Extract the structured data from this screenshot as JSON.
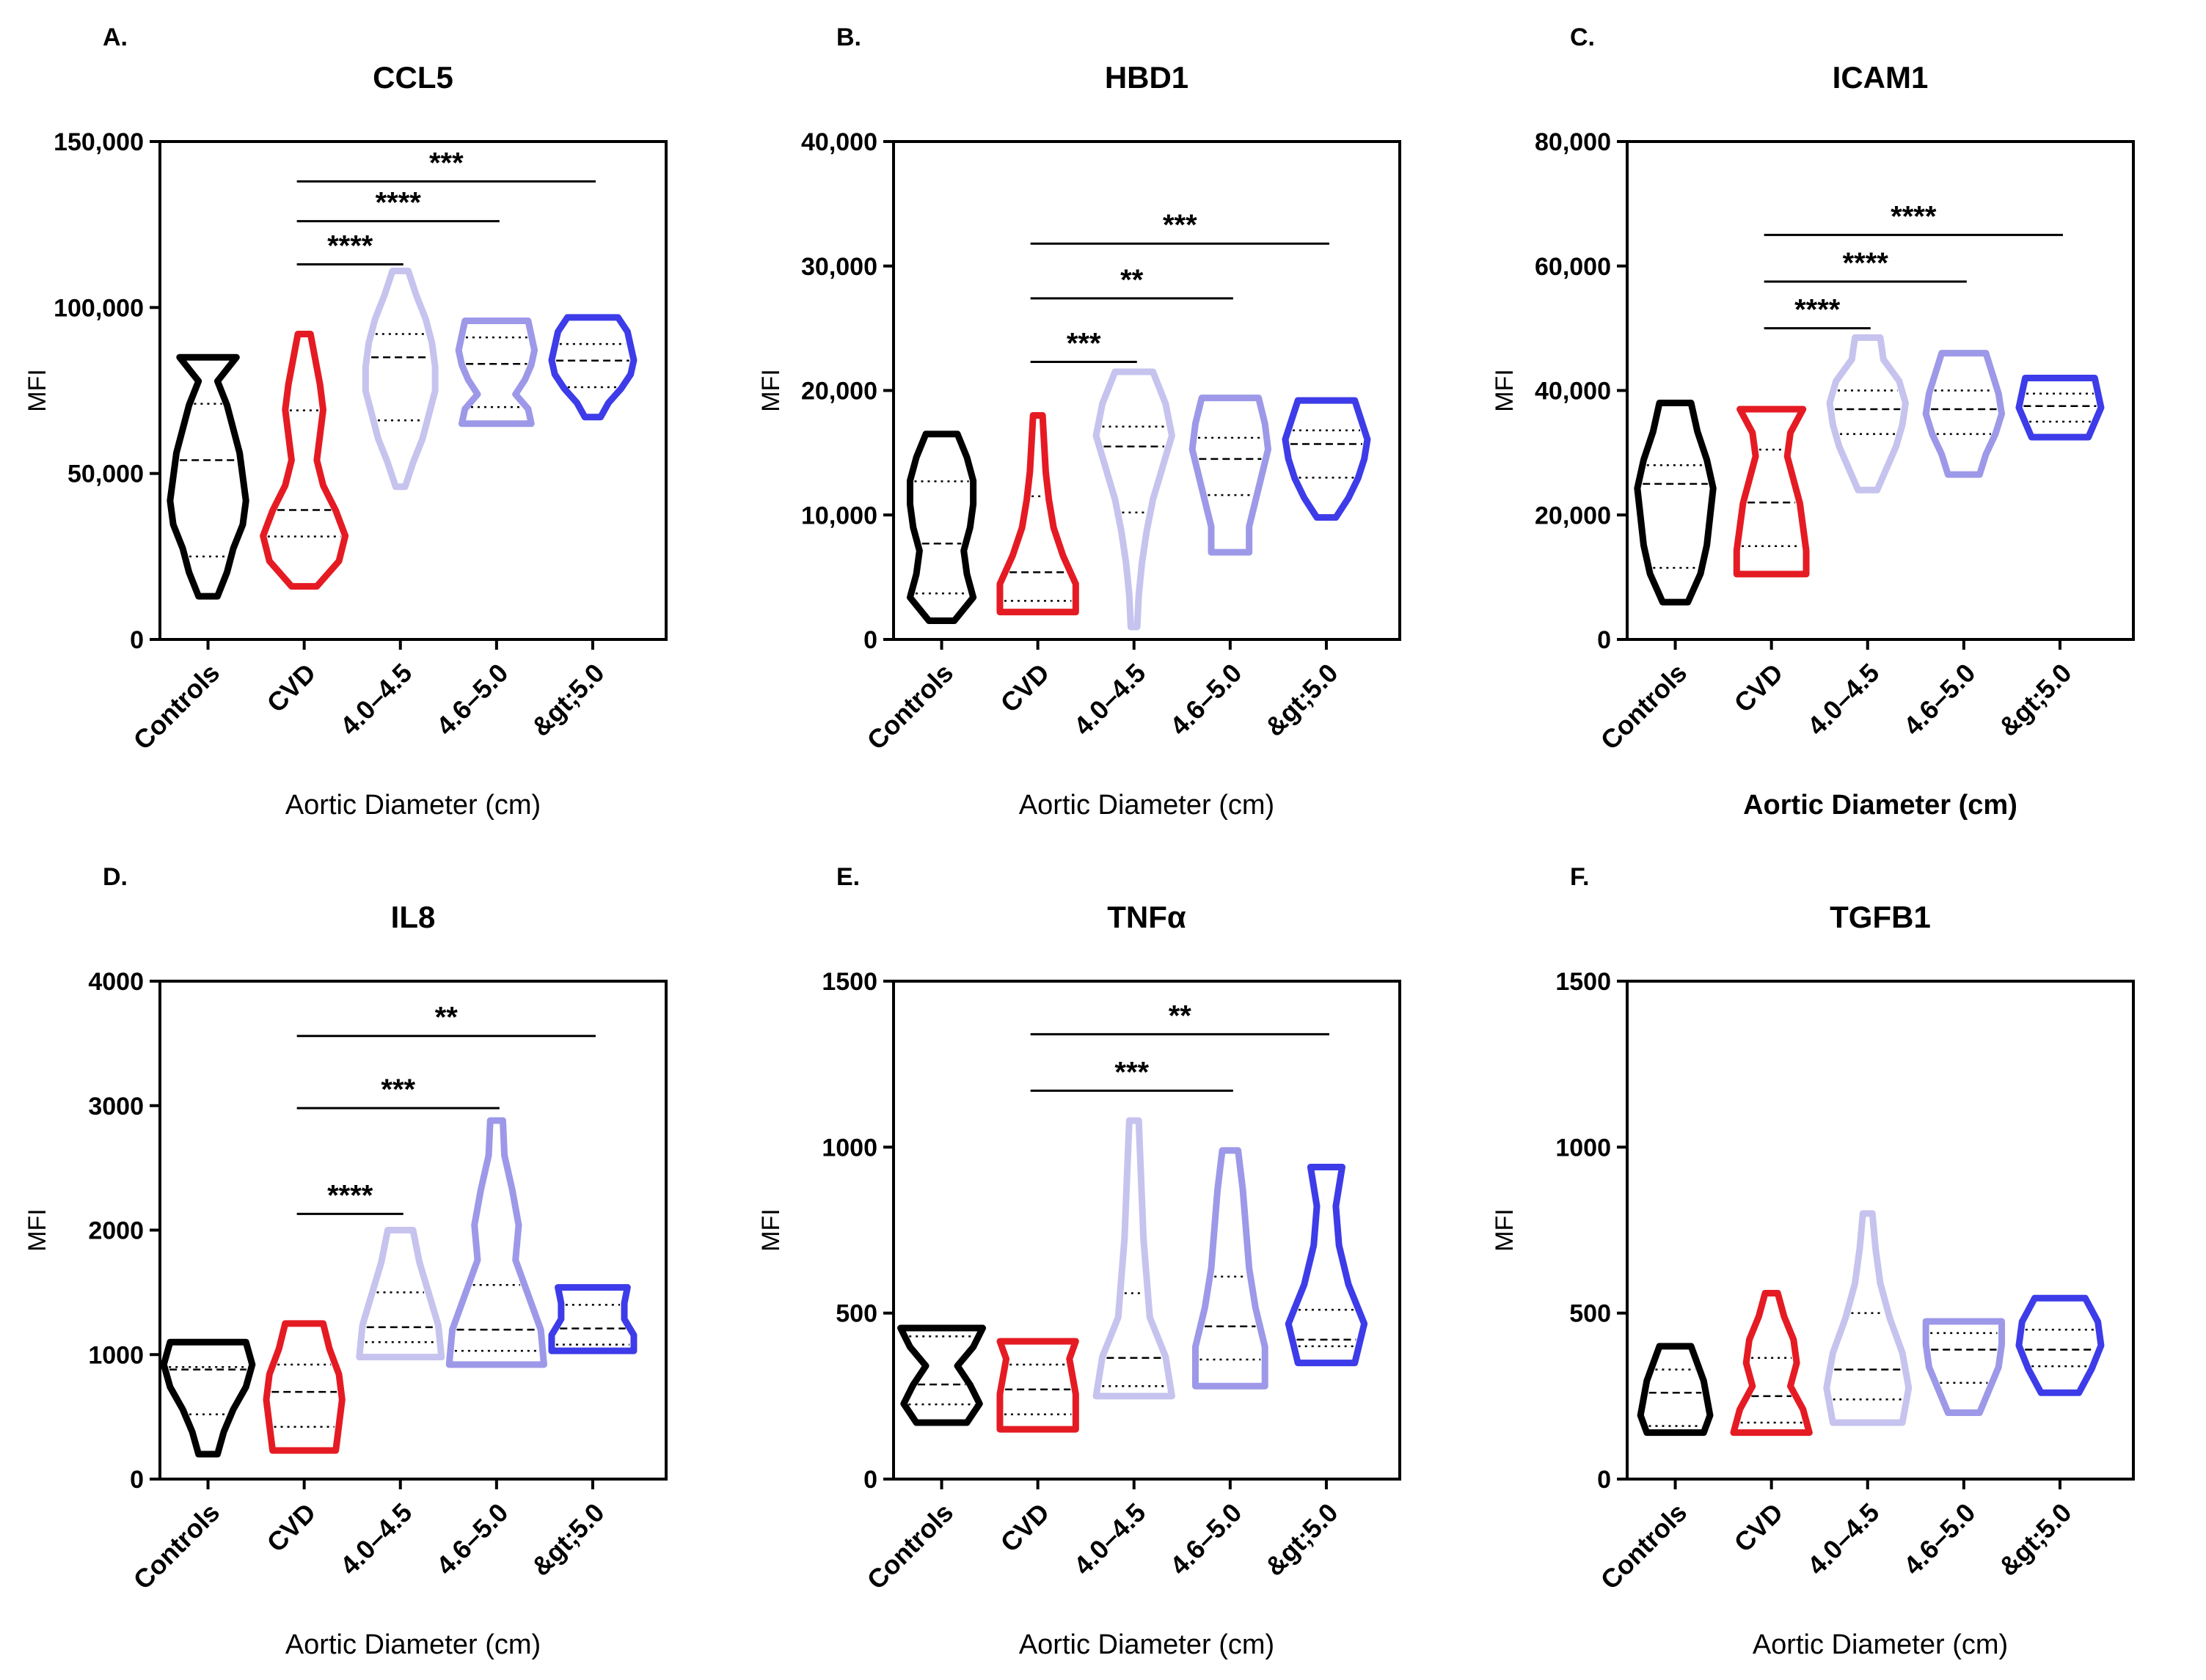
{
  "figure": {
    "colors": {
      "Controls": "#000000",
      "CVD": "#e51b23",
      "4.0–4.5": "#c6c3ee",
      "4.6–5.0": "#9d99e8",
      "&gt;5.0": "#3d3ce8"
    }
  },
  "chart_data": [
    {
      "panel": "A.",
      "type": "violin",
      "title": "CCL5",
      "ylabel": "MFI",
      "xlabel": "Aortic Diameter (cm)",
      "ylim": [
        0,
        150000
      ],
      "yticks": [
        0,
        50000,
        100000,
        150000
      ],
      "ytick_labels": [
        "0",
        "50,000",
        "100,000",
        "150,000"
      ],
      "categories": [
        "Controls",
        "CVD",
        "4.0–4.5",
        "4.6–5.0",
        "&gt;5.0"
      ],
      "series": [
        {
          "name": "Controls",
          "min": 13000,
          "max": 85000,
          "q1": 25000,
          "median": 54000,
          "q3": 71000,
          "halfw": [
            0.06,
            0.12,
            0.16,
            0.22,
            0.24,
            0.22,
            0.2,
            0.16,
            0.12,
            0.06,
            0.18
          ]
        },
        {
          "name": "CVD",
          "min": 16000,
          "max": 92000,
          "q1": 31000,
          "median": 39000,
          "q3": 69000,
          "halfw": [
            0.08,
            0.22,
            0.26,
            0.2,
            0.12,
            0.08,
            0.1,
            0.12,
            0.1,
            0.07,
            0.04
          ]
        },
        {
          "name": "4.0–4.5",
          "min": 46000,
          "max": 111000,
          "q1": 66000,
          "median": 85000,
          "q3": 92000,
          "halfw": [
            0.03,
            0.08,
            0.14,
            0.18,
            0.22,
            0.22,
            0.2,
            0.16,
            0.1,
            0.05
          ]
        },
        {
          "name": "4.6–5.0",
          "min": 65000,
          "max": 96000,
          "q1": 70000,
          "median": 83000,
          "q3": 91000,
          "halfw": [
            0.22,
            0.2,
            0.12,
            0.18,
            0.22,
            0.24,
            0.22,
            0.2
          ]
        },
        {
          "name": "&gt;5.0",
          "min": 67000,
          "max": 97000,
          "q1": 76000,
          "median": 84000,
          "q3": 89000,
          "halfw": [
            0.05,
            0.1,
            0.18,
            0.24,
            0.26,
            0.24,
            0.22,
            0.16
          ]
        }
      ],
      "significance": [
        {
          "from": "CVD",
          "to": "4.0–4.5",
          "label": "****",
          "y": 113000
        },
        {
          "from": "CVD",
          "to": "4.6–5.0",
          "label": "****",
          "y": 126000
        },
        {
          "from": "CVD",
          "to": "&gt;5.0",
          "label": "***",
          "y": 138000
        }
      ]
    },
    {
      "panel": "B.",
      "type": "violin",
      "title": "HBD1",
      "ylabel": "MFI",
      "xlabel": "Aortic Diameter (cm)",
      "ylim": [
        0,
        40000
      ],
      "yticks": [
        0,
        10000,
        20000,
        30000,
        40000
      ],
      "ytick_labels": [
        "0",
        "10,000",
        "20,000",
        "30,000",
        "40,000"
      ],
      "categories": [
        "Controls",
        "CVD",
        "4.0–4.5",
        "4.6–5.0",
        "&gt;5.0"
      ],
      "series": [
        {
          "name": "Controls",
          "min": 1500,
          "max": 16500,
          "q1": 3700,
          "median": 7700,
          "q3": 12700,
          "halfw": [
            0.08,
            0.2,
            0.16,
            0.14,
            0.18,
            0.2,
            0.2,
            0.16,
            0.1
          ]
        },
        {
          "name": "CVD",
          "min": 2200,
          "max": 18000,
          "q1": 3100,
          "median": 5400,
          "q3": 11500,
          "halfw": [
            0.24,
            0.24,
            0.16,
            0.1,
            0.07,
            0.05,
            0.04,
            0.03
          ]
        },
        {
          "name": "4.0–4.5",
          "min": 1000,
          "max": 21500,
          "q1": 10200,
          "median": 15500,
          "q3": 17100,
          "halfw": [
            0.02,
            0.03,
            0.05,
            0.08,
            0.12,
            0.18,
            0.24,
            0.2,
            0.12
          ]
        },
        {
          "name": "4.6–5.0",
          "min": 7000,
          "max": 19400,
          "q1": 11600,
          "median": 14500,
          "q3": 16200,
          "halfw": [
            0.12,
            0.12,
            0.16,
            0.2,
            0.24,
            0.22,
            0.18
          ]
        },
        {
          "name": "&gt;5.0",
          "min": 9800,
          "max": 19200,
          "q1": 13000,
          "median": 15700,
          "q3": 16800,
          "halfw": [
            0.06,
            0.14,
            0.2,
            0.24,
            0.26,
            0.22,
            0.18
          ]
        }
      ],
      "significance": [
        {
          "from": "CVD",
          "to": "4.0–4.5",
          "label": "***",
          "y": 22300
        },
        {
          "from": "CVD",
          "to": "4.6–5.0",
          "label": "**",
          "y": 27400
        },
        {
          "from": "CVD",
          "to": "&gt;5.0",
          "label": "***",
          "y": 31800
        }
      ]
    },
    {
      "panel": "C.",
      "type": "violin",
      "title": "ICAM1",
      "ylabel": "MFI",
      "xlabel": "Aortic Diameter (cm)",
      "xlabel_bold": true,
      "ylim": [
        0,
        80000
      ],
      "yticks": [
        0,
        20000,
        40000,
        60000,
        80000
      ],
      "ytick_labels": [
        "0",
        "20,000",
        "40,000",
        "60,000",
        "80,000"
      ],
      "categories": [
        "Controls",
        "CVD",
        "4.0–4.5",
        "4.6–5.0",
        "&gt;5.0"
      ],
      "series": [
        {
          "name": "Controls",
          "min": 6000,
          "max": 38000,
          "q1": 11500,
          "median": 25000,
          "q3": 28000,
          "halfw": [
            0.08,
            0.16,
            0.2,
            0.22,
            0.24,
            0.2,
            0.14,
            0.1
          ]
        },
        {
          "name": "CVD",
          "min": 10500,
          "max": 37000,
          "q1": 15000,
          "median": 22000,
          "q3": 30500,
          "halfw": [
            0.22,
            0.22,
            0.2,
            0.18,
            0.14,
            0.1,
            0.12,
            0.2
          ]
        },
        {
          "name": "4.0–4.5",
          "min": 24000,
          "max": 48500,
          "q1": 33000,
          "median": 37000,
          "q3": 40000,
          "halfw": [
            0.06,
            0.12,
            0.18,
            0.22,
            0.24,
            0.2,
            0.1,
            0.08
          ]
        },
        {
          "name": "4.6–5.0",
          "min": 26500,
          "max": 46000,
          "q1": 33000,
          "median": 37000,
          "q3": 40000,
          "halfw": [
            0.1,
            0.14,
            0.2,
            0.24,
            0.22,
            0.18,
            0.14
          ]
        },
        {
          "name": "&gt;5.0",
          "min": 32500,
          "max": 42000,
          "q1": 35000,
          "median": 37500,
          "q3": 39500,
          "halfw": [
            0.18,
            0.22,
            0.26,
            0.24,
            0.22
          ]
        }
      ],
      "significance": [
        {
          "from": "CVD",
          "to": "4.0–4.5",
          "label": "****",
          "y": 50000
        },
        {
          "from": "CVD",
          "to": "4.6–5.0",
          "label": "****",
          "y": 57500
        },
        {
          "from": "CVD",
          "to": "&gt;5.0",
          "label": "****",
          "y": 65000
        }
      ]
    },
    {
      "panel": "D.",
      "type": "violin",
      "title": "IL8",
      "ylabel": "MFI",
      "xlabel": "Aortic Diameter (cm)",
      "ylim": [
        0,
        4000
      ],
      "yticks": [
        0,
        1000,
        2000,
        3000,
        4000
      ],
      "ytick_labels": [
        "0",
        "1000",
        "2000",
        "3000",
        "4000"
      ],
      "categories": [
        "Controls",
        "CVD",
        "4.0–4.5",
        "4.6–5.0",
        "&gt;5.0"
      ],
      "series": [
        {
          "name": "Controls",
          "min": 200,
          "max": 1100,
          "q1": 520,
          "median": 880,
          "q3": 900,
          "halfw": [
            0.06,
            0.1,
            0.16,
            0.24,
            0.28,
            0.24
          ]
        },
        {
          "name": "CVD",
          "min": 230,
          "max": 1250,
          "q1": 420,
          "median": 700,
          "q3": 920,
          "halfw": [
            0.2,
            0.22,
            0.24,
            0.22,
            0.16,
            0.12
          ]
        },
        {
          "name": "4.0–4.5",
          "min": 980,
          "max": 2000,
          "q1": 1100,
          "median": 1220,
          "q3": 1500,
          "halfw": [
            0.26,
            0.24,
            0.18,
            0.12,
            0.08
          ]
        },
        {
          "name": "4.6–5.0",
          "min": 920,
          "max": 2880,
          "q1": 1030,
          "median": 1200,
          "q3": 1560,
          "halfw": [
            0.3,
            0.28,
            0.2,
            0.12,
            0.14,
            0.1,
            0.05,
            0.04
          ]
        },
        {
          "name": "&gt;5.0",
          "min": 1030,
          "max": 1540,
          "q1": 1080,
          "median": 1210,
          "q3": 1400,
          "halfw": [
            0.26,
            0.26,
            0.2,
            0.2,
            0.22
          ]
        }
      ],
      "significance": [
        {
          "from": "CVD",
          "to": "4.0–4.5",
          "label": "****",
          "y": 2130
        },
        {
          "from": "CVD",
          "to": "4.6–5.0",
          "label": "***",
          "y": 2980
        },
        {
          "from": "CVD",
          "to": "&gt;5.0",
          "label": "**",
          "y": 3560
        }
      ]
    },
    {
      "panel": "E.",
      "type": "violin",
      "title": "TNFα",
      "ylabel": "MFI",
      "xlabel": "Aortic Diameter (cm)",
      "ylim": [
        0,
        1500
      ],
      "yticks": [
        0,
        500,
        1000,
        1500
      ],
      "ytick_labels": [
        "0",
        "500",
        "1000",
        "1500"
      ],
      "categories": [
        "Controls",
        "CVD",
        "4.0–4.5",
        "4.6–5.0",
        "&gt;5.0"
      ],
      "series": [
        {
          "name": "Controls",
          "min": 170,
          "max": 455,
          "q1": 225,
          "median": 285,
          "q3": 430,
          "halfw": [
            0.16,
            0.24,
            0.18,
            0.1,
            0.2,
            0.26
          ]
        },
        {
          "name": "CVD",
          "min": 150,
          "max": 415,
          "q1": 195,
          "median": 270,
          "q3": 345,
          "halfw": [
            0.24,
            0.24,
            0.24,
            0.22,
            0.2,
            0.24
          ]
        },
        {
          "name": "4.0–4.5",
          "min": 250,
          "max": 1080,
          "q1": 280,
          "median": 365,
          "q3": 560,
          "halfw": [
            0.24,
            0.2,
            0.1,
            0.08,
            0.06,
            0.05,
            0.04,
            0.03
          ]
        },
        {
          "name": "4.6–5.0",
          "min": 280,
          "max": 990,
          "q1": 360,
          "median": 460,
          "q3": 610,
          "halfw": [
            0.22,
            0.22,
            0.16,
            0.12,
            0.1,
            0.08,
            0.05
          ]
        },
        {
          "name": "&gt;5.0",
          "min": 350,
          "max": 940,
          "q1": 400,
          "median": 420,
          "q3": 510,
          "halfw": [
            0.18,
            0.24,
            0.14,
            0.08,
            0.06,
            0.1
          ]
        }
      ],
      "significance": [
        {
          "from": "CVD",
          "to": "4.6–5.0",
          "label": "***",
          "y": 1170
        },
        {
          "from": "CVD",
          "to": "&gt;5.0",
          "label": "**",
          "y": 1340
        }
      ]
    },
    {
      "panel": "F.",
      "type": "violin",
      "title": "TGFB1",
      "ylabel": "MFI",
      "xlabel": "Aortic Diameter (cm)",
      "ylim": [
        0,
        1500
      ],
      "yticks": [
        0,
        500,
        1000,
        1500
      ],
      "ytick_labels": [
        "0",
        "500",
        "1000",
        "1500"
      ],
      "categories": [
        "Controls",
        "CVD",
        "4.0–4.5",
        "4.6–5.0",
        "&gt;5.0"
      ],
      "series": [
        {
          "name": "Controls",
          "min": 140,
          "max": 400,
          "q1": 160,
          "median": 260,
          "q3": 330,
          "halfw": [
            0.18,
            0.22,
            0.2,
            0.18,
            0.14,
            0.1
          ]
        },
        {
          "name": "CVD",
          "min": 140,
          "max": 560,
          "q1": 170,
          "median": 250,
          "q3": 365,
          "halfw": [
            0.24,
            0.2,
            0.12,
            0.16,
            0.14,
            0.08,
            0.04
          ]
        },
        {
          "name": "4.0–4.5",
          "min": 170,
          "max": 800,
          "q1": 240,
          "median": 330,
          "q3": 500,
          "halfw": [
            0.22,
            0.26,
            0.22,
            0.14,
            0.08,
            0.05,
            0.03
          ]
        },
        {
          "name": "4.6–5.0",
          "min": 200,
          "max": 475,
          "q1": 290,
          "median": 390,
          "q3": 440,
          "halfw": [
            0.1,
            0.16,
            0.22,
            0.24,
            0.24
          ]
        },
        {
          "name": "&gt;5.0",
          "min": 260,
          "max": 545,
          "q1": 340,
          "median": 390,
          "q3": 450,
          "halfw": [
            0.12,
            0.2,
            0.26,
            0.24,
            0.16
          ]
        }
      ],
      "significance": []
    }
  ]
}
